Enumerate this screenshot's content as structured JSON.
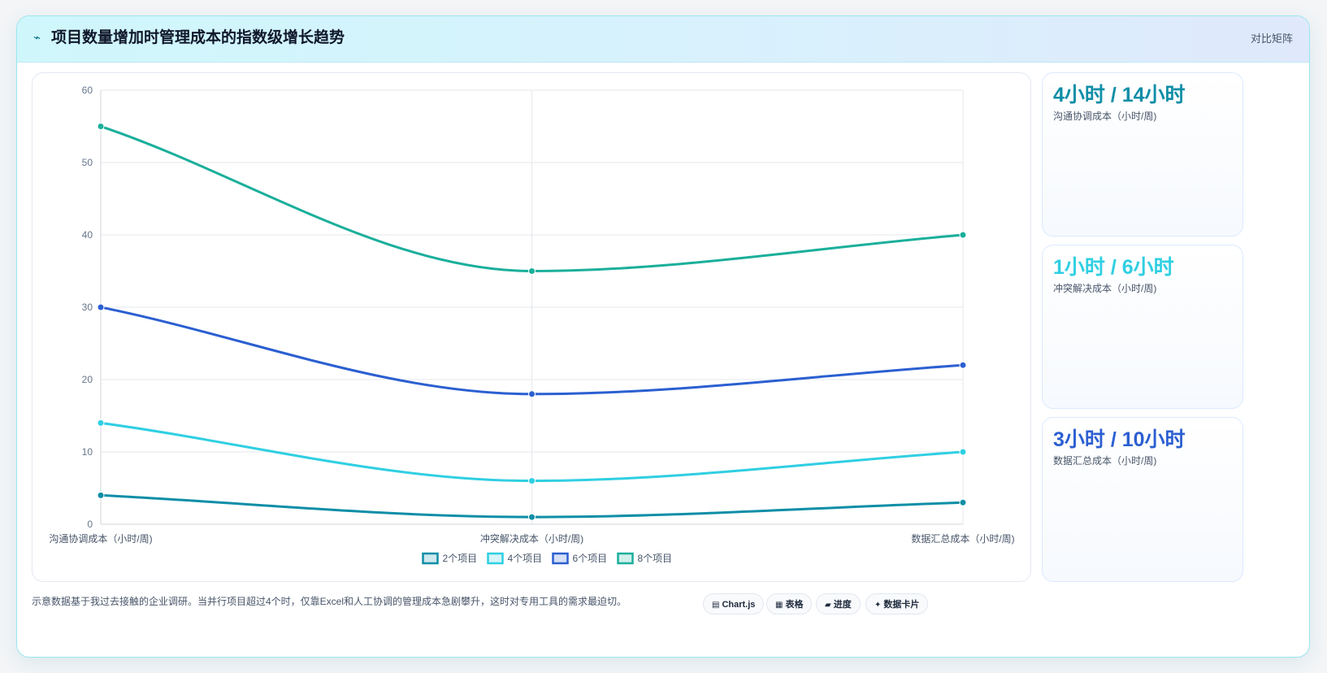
{
  "header": {
    "title": "项目数量增加时管理成本的指数级增长趋势",
    "title_icon": "chart-trend-icon",
    "mode_link": "对比矩阵"
  },
  "colors": {
    "series_2": "#0e8ea7",
    "series_4": "#2fcfe2",
    "series_6": "#2b5fd1",
    "series_8": "#1aaf9b",
    "stat_1": "#0e8ea7",
    "stat_2": "#2fcfe2",
    "stat_3": "#2b5fd1"
  },
  "chart_data": {
    "type": "line",
    "categories": [
      "沟通协调成本（小时/周)",
      "冲突解决成本（小时/周)",
      "数据汇总成本（小时/周)"
    ],
    "series": [
      {
        "name": "2个项目",
        "values": [
          4,
          1,
          3
        ],
        "color": "#0e8ea7"
      },
      {
        "name": "4个项目",
        "values": [
          14,
          6,
          10
        ],
        "color": "#2fcfe2"
      },
      {
        "name": "6个项目",
        "values": [
          30,
          18,
          22
        ],
        "color": "#2b5fd1"
      },
      {
        "name": "8个项目",
        "values": [
          55,
          35,
          40
        ],
        "color": "#1aaf9b"
      }
    ],
    "ylim": [
      0,
      60
    ],
    "yticks": [
      0,
      10,
      20,
      30,
      40,
      50,
      60
    ],
    "grid": true,
    "legend": "bottom",
    "curve": "smooth"
  },
  "stats": [
    {
      "value": "4小时 / 14小时",
      "label": "沟通协调成本（小时/周)"
    },
    {
      "value": "1小时 / 6小时",
      "label": "冲突解决成本（小时/周)"
    },
    {
      "value": "3小时 / 10小时",
      "label": "数据汇总成本（小时/周)"
    }
  ],
  "footnote": "示意数据基于我过去接触的企业调研。当并行项目超过4个时，仅靠Excel和人工协调的管理成本急剧攀升，这时对专用工具的需求最迫切。",
  "view_buttons": [
    {
      "label": "Chart.js",
      "icon": "chart-icon"
    },
    {
      "label": "表格",
      "icon": "table-icon"
    },
    {
      "label": "进度",
      "icon": "progress-icon"
    },
    {
      "label": "数据卡片",
      "icon": "sparkle-icon"
    }
  ]
}
